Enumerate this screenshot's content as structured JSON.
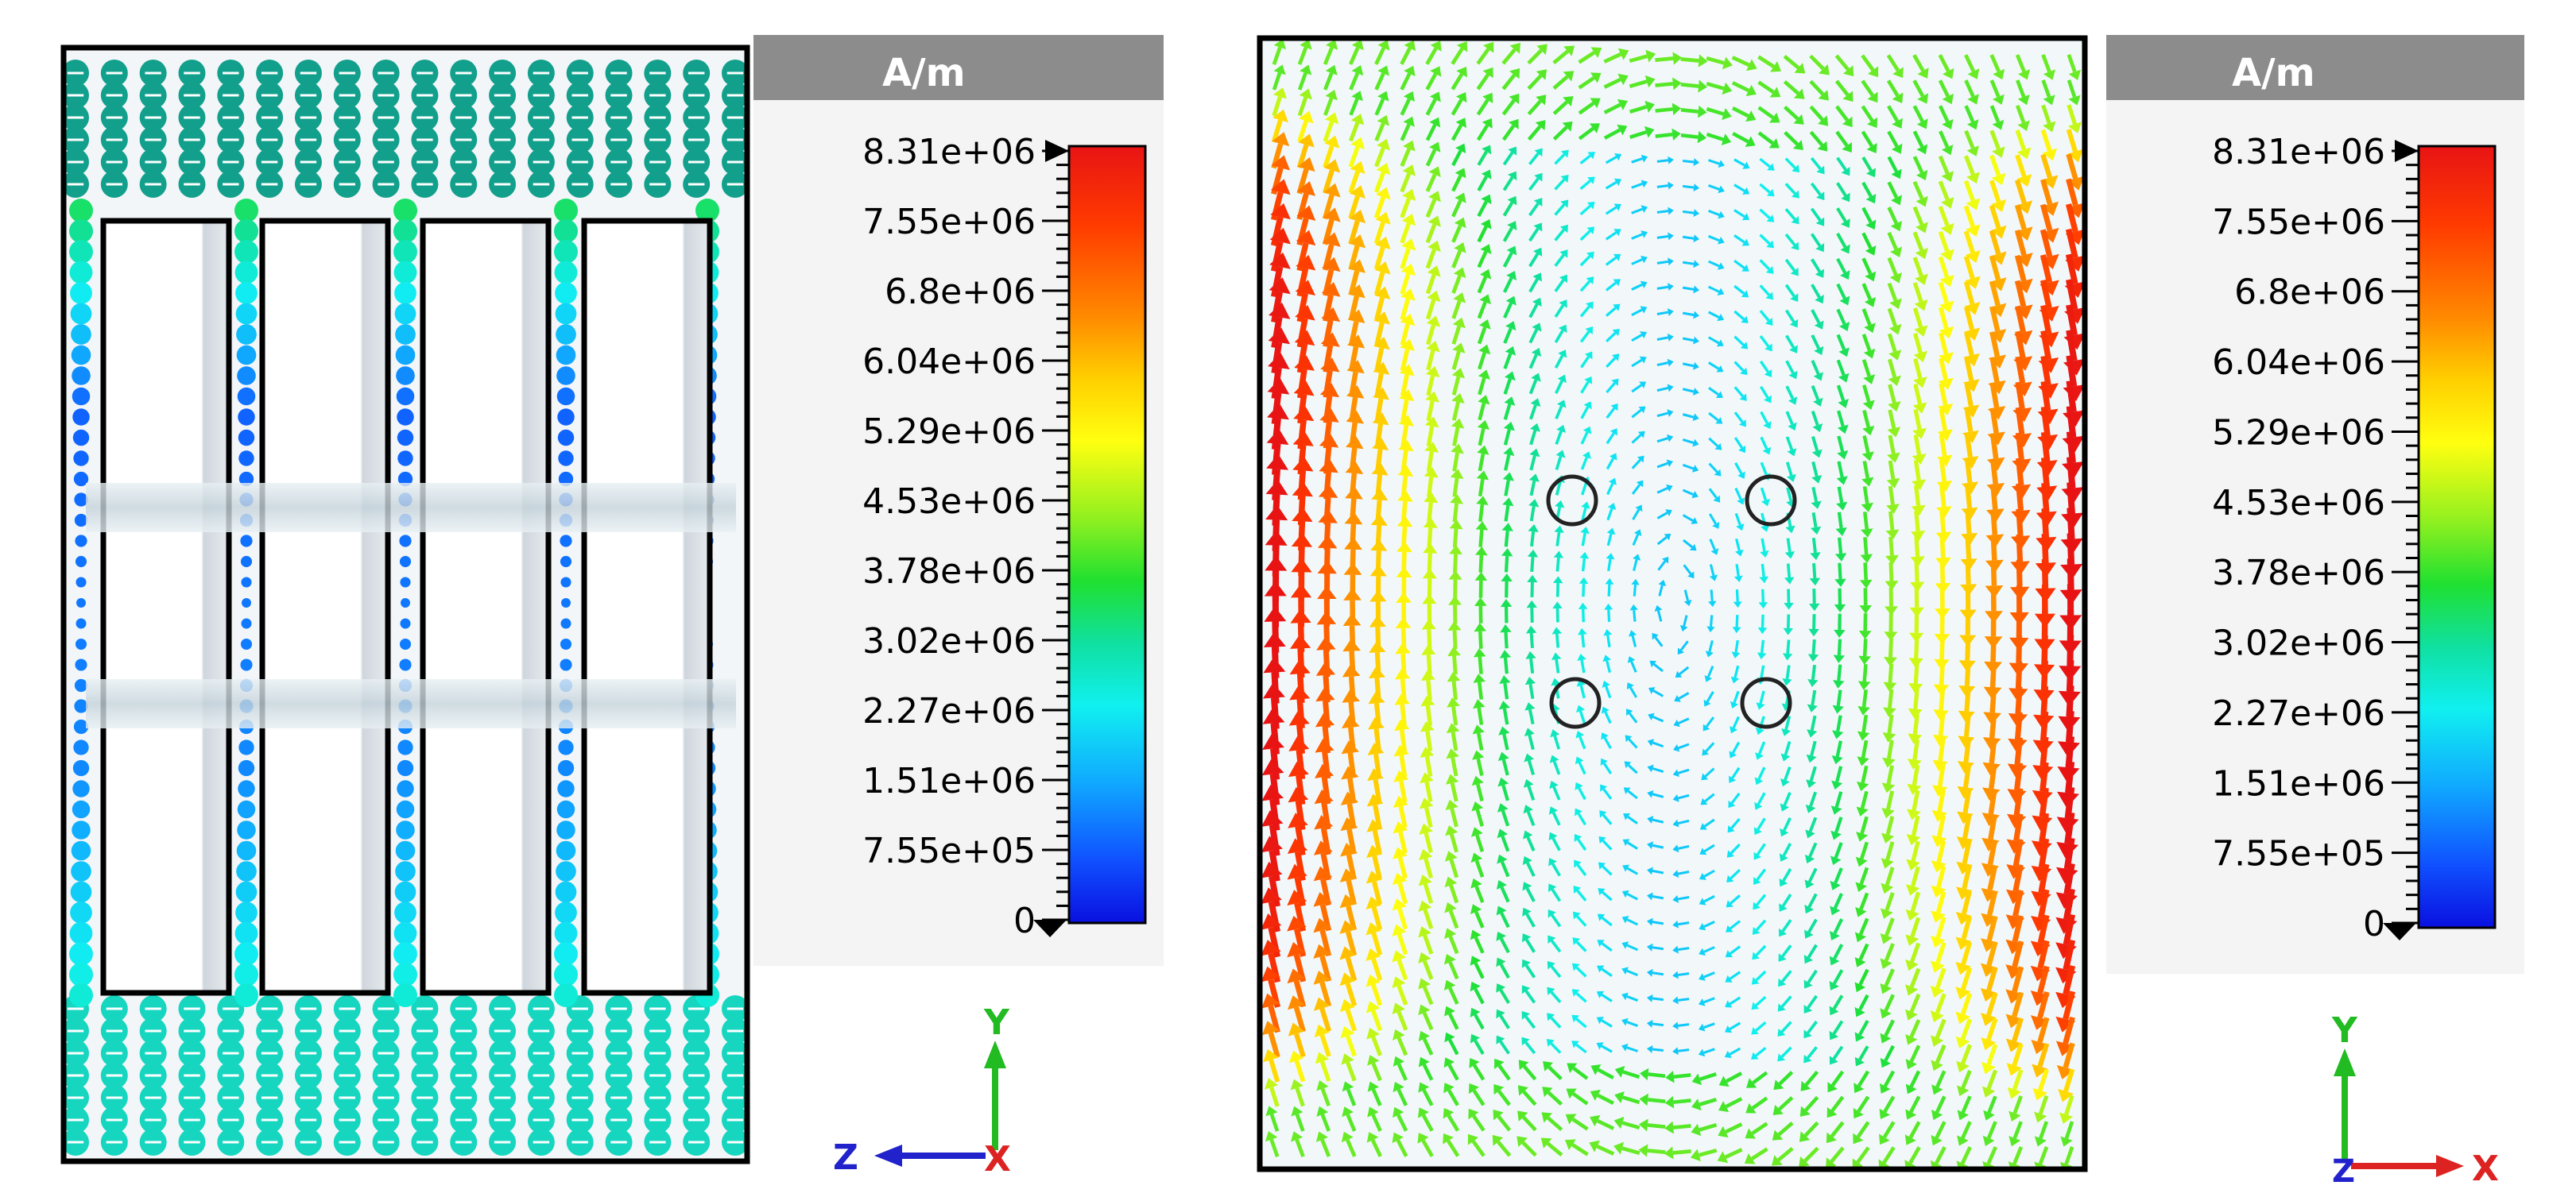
{
  "panels": [
    {
      "view": "left",
      "unit": "A/m",
      "colorbar": {
        "max_label": "8.31e+06",
        "tick_labels": [
          "8.31e+06",
          "7.55e+06",
          "6.8e+06",
          "6.04e+06",
          "5.29e+06",
          "4.53e+06",
          "3.78e+06",
          "3.02e+06",
          "2.27e+06",
          "1.51e+06",
          "7.55e+05",
          "0"
        ],
        "colors": [
          "#ff1a0a",
          "#ff4a00",
          "#ff8a00",
          "#ffc800",
          "#ffff10",
          "#b8ff20",
          "#40e830",
          "#10e0a0",
          "#10f0f0",
          "#10a8ff",
          "#1050ff",
          "#0a10e0"
        ]
      },
      "axes": {
        "up": "Y",
        "side": "Z",
        "out": "X",
        "up_color": "#22bb22",
        "side_color": "#2222cc",
        "out_color": "#dd2222"
      }
    },
    {
      "view": "right",
      "unit": "A/m",
      "colorbar": {
        "max_label": "8.31e+06",
        "tick_labels": [
          "8.31e+06",
          "7.55e+06",
          "6.8e+06",
          "6.04e+06",
          "5.29e+06",
          "4.53e+06",
          "3.78e+06",
          "3.02e+06",
          "2.27e+06",
          "1.51e+06",
          "7.55e+05",
          "0"
        ],
        "colors": [
          "#ff1a0a",
          "#ff4a00",
          "#ff8a00",
          "#ffc800",
          "#ffff10",
          "#b8ff20",
          "#40e830",
          "#10e0a0",
          "#10f0f0",
          "#10a8ff",
          "#1050ff",
          "#0a10e0"
        ]
      },
      "axes": {
        "up": "Y",
        "side": "X",
        "out": "Z",
        "up_color": "#22bb22",
        "side_color": "#dd2222",
        "out_color": "#2222cc"
      }
    }
  ]
}
